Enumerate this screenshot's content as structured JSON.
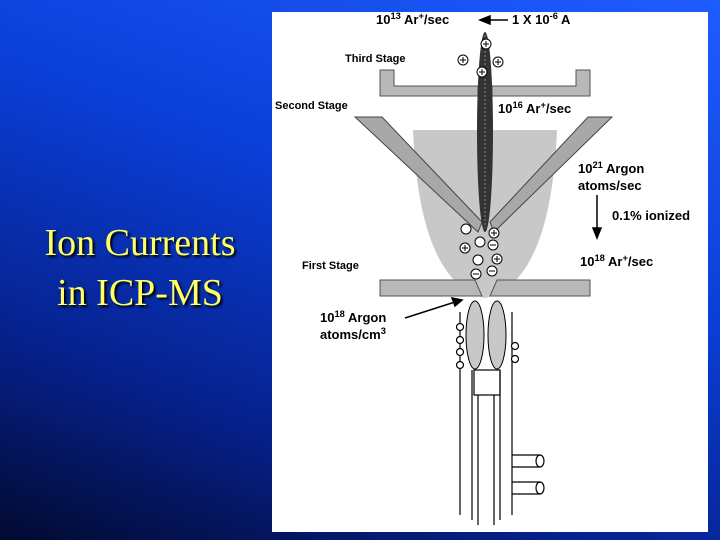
{
  "slide": {
    "title": [
      "Ion Currents",
      "in ICP-MS"
    ],
    "labels": [
      [
        [
          {
            "t": "10"
          },
          {
            "sup": "13"
          },
          {
            "t": " Ar"
          },
          {
            "sup": "+"
          },
          {
            "t": "/sec"
          }
        ]
      ],
      [
        [
          {
            "t": "1 X 10"
          },
          {
            "sup": "-6"
          },
          {
            "t": " A"
          }
        ]
      ],
      [
        [
          {
            "t": "Third Stage"
          }
        ]
      ],
      [
        [
          {
            "t": "Second Stage"
          }
        ]
      ],
      [
        [
          {
            "t": "10"
          },
          {
            "sup": "16"
          },
          {
            "t": " Ar"
          },
          {
            "sup": "+"
          },
          {
            "t": "/sec"
          }
        ]
      ],
      [
        [
          {
            "t": "10"
          },
          {
            "sup": "21"
          },
          {
            "t": " Argon"
          }
        ],
        [
          {
            "t": "atoms/sec"
          }
        ]
      ],
      [
        [
          {
            "t": "0.1% ionized"
          }
        ]
      ],
      [
        [
          {
            "t": "First Stage"
          }
        ]
      ],
      [
        [
          {
            "t": "10"
          },
          {
            "sup": "18"
          },
          {
            "t": " Ar"
          },
          {
            "sup": "+"
          },
          {
            "t": "/sec"
          }
        ]
      ],
      [
        [
          {
            "t": "10"
          },
          {
            "sup": "18"
          },
          {
            "t": " Argon"
          }
        ],
        [
          {
            "t": "atoms/cm"
          },
          {
            "sup": "3"
          }
        ]
      ]
    ]
  }
}
